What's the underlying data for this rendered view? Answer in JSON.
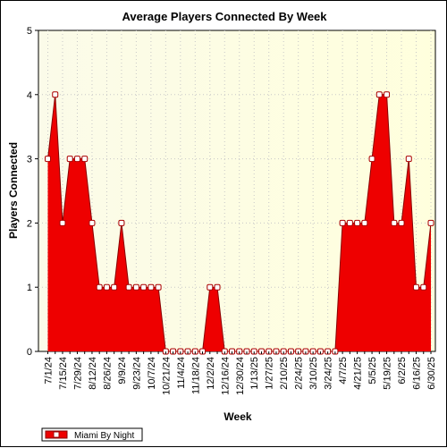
{
  "chart_data": {
    "type": "area",
    "title": "Average Players Connected By Week",
    "xlabel": "Week",
    "ylabel": "Players Connected",
    "ylim": [
      0,
      5
    ],
    "y_ticks": [
      "0",
      "1",
      "2",
      "3",
      "4",
      "5"
    ],
    "grid": true,
    "legend_position": "bottom-left",
    "colors": {
      "fill": "#ee0000",
      "line": "#880000",
      "marker_fill": "#ffffff",
      "marker_edge": "#aa0000",
      "plot_bg_left": "#fbfbe9",
      "plot_bg_right": "#ffffdd"
    },
    "x": [
      "7/1/24",
      "7/8/24",
      "7/15/24",
      "7/22/24",
      "7/29/24",
      "8/5/24",
      "8/12/24",
      "8/19/24",
      "8/26/24",
      "9/2/24",
      "9/9/24",
      "9/16/24",
      "9/23/24",
      "9/30/24",
      "10/7/24",
      "10/14/24",
      "10/21/24",
      "10/28/24",
      "11/4/24",
      "11/11/24",
      "11/18/24",
      "11/25/24",
      "12/2/24",
      "12/9/24",
      "12/16/24",
      "12/23/24",
      "12/30/24",
      "1/6/25",
      "1/13/25",
      "1/20/25",
      "1/27/25",
      "2/3/25",
      "2/10/25",
      "2/17/25",
      "2/24/25",
      "3/3/25",
      "3/10/25",
      "3/17/25",
      "3/24/25",
      "3/31/25",
      "4/7/25",
      "4/14/25",
      "4/21/25",
      "4/28/25",
      "5/5/25",
      "5/12/25",
      "5/19/25",
      "5/26/25",
      "6/2/25",
      "6/9/25",
      "6/16/25",
      "6/23/25",
      "6/30/25"
    ],
    "x_tick_labels": [
      "7/1/24",
      "7/15/24",
      "7/29/24",
      "8/12/24",
      "8/26/24",
      "9/9/24",
      "9/23/24",
      "10/7/24",
      "10/21/24",
      "11/4/24",
      "11/18/24",
      "12/2/24",
      "12/16/24",
      "12/30/24",
      "1/13/25",
      "1/27/25",
      "2/10/25",
      "2/24/25",
      "3/10/25",
      "3/24/25",
      "4/7/25",
      "4/21/25",
      "5/5/25",
      "5/19/25",
      "6/2/25",
      "6/16/25",
      "6/30/25"
    ],
    "series": [
      {
        "name": "Miami By Night",
        "values": [
          3,
          4,
          2,
          3,
          3,
          3,
          2,
          1,
          1,
          1,
          2,
          1,
          1,
          1,
          1,
          1,
          0,
          0,
          0,
          0,
          0,
          0,
          1,
          1,
          0,
          0,
          0,
          0,
          0,
          0,
          0,
          0,
          0,
          0,
          0,
          0,
          0,
          0,
          0,
          0,
          2,
          2,
          2,
          2,
          3,
          4,
          4,
          2,
          2,
          3,
          1,
          1,
          2
        ]
      }
    ]
  }
}
